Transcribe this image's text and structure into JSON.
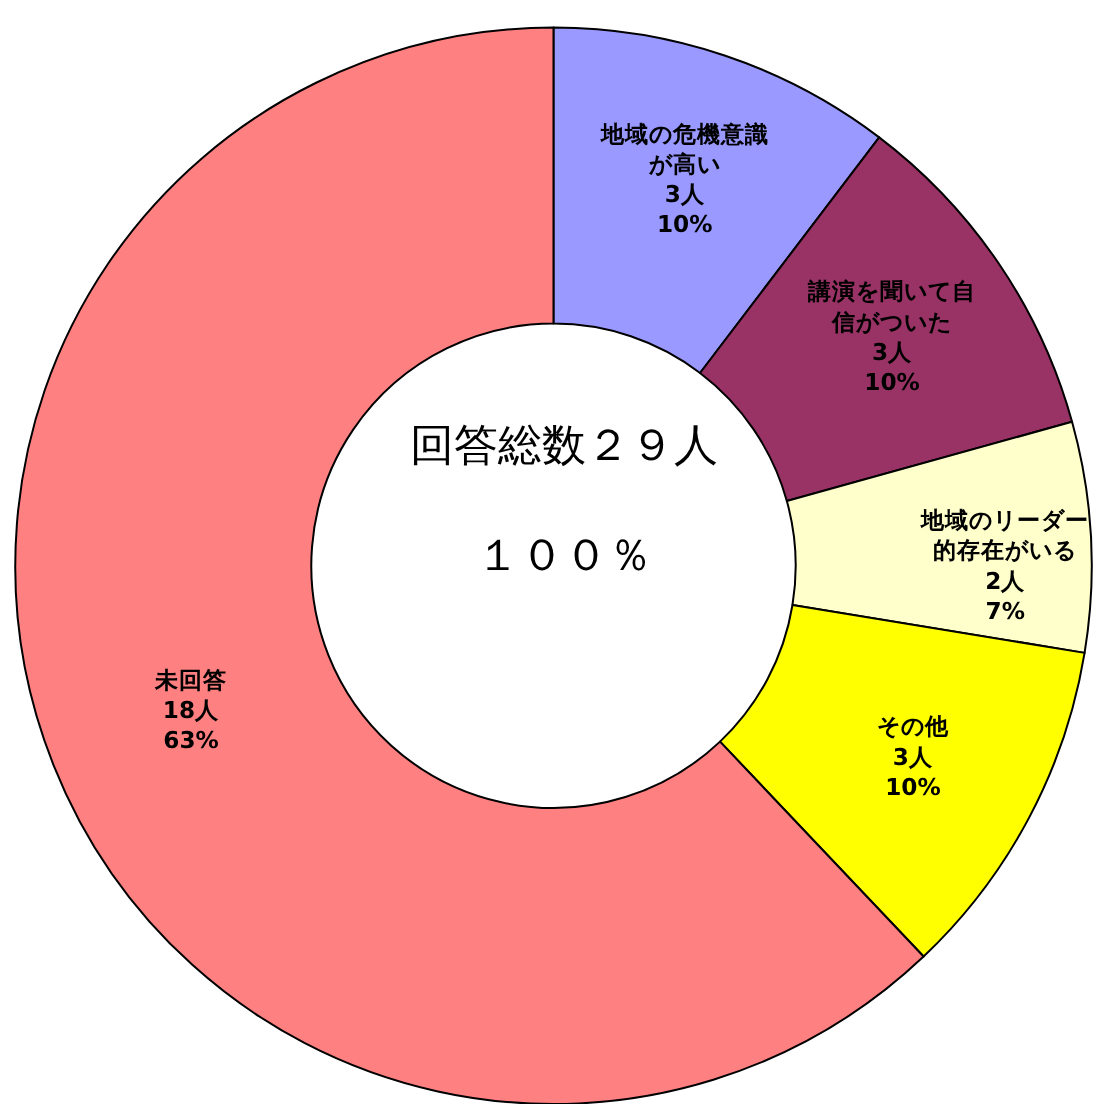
{
  "chart_data": {
    "type": "donut",
    "categories": [
      "地域の危機意識が高い",
      "講演を聞いて自信がついた",
      "地域のリーダー的存在がいる",
      "その他",
      "未回答"
    ],
    "values": [
      3,
      3,
      2,
      3,
      18
    ],
    "value_labels": [
      "3人\n10%",
      "3人\n10%",
      "2人\n7%",
      "3人\n10%",
      "18人\n63%"
    ],
    "colors": [
      "#9999ff",
      "#993366",
      "#ffffcc",
      "#ffff00",
      "#ff8080"
    ],
    "annotations": [
      "回答総数２９人",
      "１００％"
    ],
    "legend": false
  }
}
